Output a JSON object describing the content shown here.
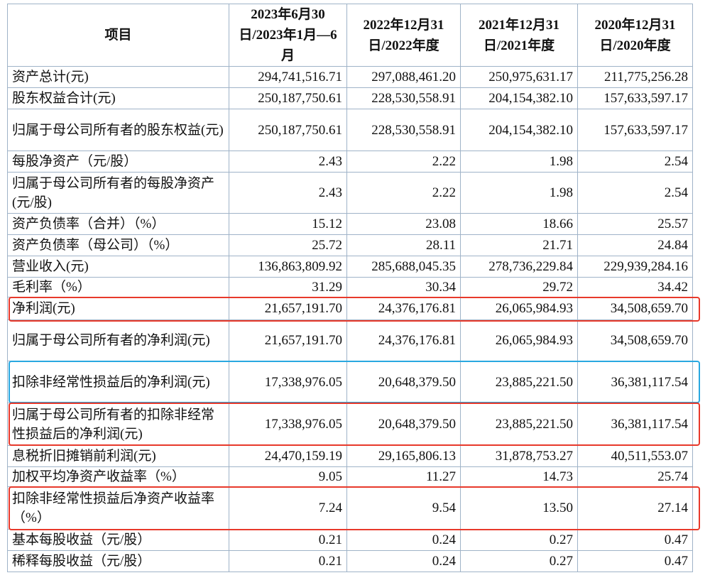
{
  "table": {
    "header": [
      "项目",
      "2023年6月30日/2023年1月—6月",
      "2022年12月31日/2022年度",
      "2021年12月31日/2021年度",
      "2020年12月31日/2020年度"
    ],
    "rows": [
      [
        "资产总计(元)",
        "294,741,516.71",
        "297,088,461.20",
        "250,975,631.17",
        "211,775,256.28"
      ],
      [
        "股东权益合计(元)",
        "250,187,750.61",
        "228,530,558.91",
        "204,154,382.10",
        "157,633,597.17"
      ],
      [
        "归属于母公司所有者的股东权益(元)",
        "250,187,750.61",
        "228,530,558.91",
        "204,154,382.10",
        "157,633,597.17"
      ],
      [
        "每股净资产（元/股）",
        "2.43",
        "2.22",
        "1.98",
        "2.54"
      ],
      [
        "归属于母公司所有者的每股净资产(元/股)",
        "2.43",
        "2.22",
        "1.98",
        "2.54"
      ],
      [
        "资产负债率（合并）（%）",
        "15.12",
        "23.08",
        "18.66",
        "25.57"
      ],
      [
        "资产负债率（母公司）（%）",
        "25.72",
        "28.11",
        "21.71",
        "24.84"
      ],
      [
        "营业收入(元)",
        "136,863,809.92",
        "285,688,045.35",
        "278,736,229.84",
        "229,939,284.16"
      ],
      [
        "毛利率（%）",
        "31.29",
        "30.34",
        "29.72",
        "34.42"
      ],
      [
        "净利润(元)",
        "21,657,191.70",
        "24,376,176.81",
        "26,065,984.93",
        "34,508,659.70"
      ],
      [
        "归属于母公司所有者的净利润(元)",
        "21,657,191.70",
        "24,376,176.81",
        "26,065,984.93",
        "34,508,659.70"
      ],
      [
        "扣除非经常性损益后的净利润(元)",
        "17,338,976.05",
        "20,648,379.50",
        "23,885,221.50",
        "36,381,117.54"
      ],
      [
        "归属于母公司所有者的扣除非经常性损益后的净利润(元)",
        "17,338,976.05",
        "20,648,379.50",
        "23,885,221.50",
        "36,381,117.54"
      ],
      [
        "息税折旧摊销前利润(元)",
        "24,470,159.19",
        "29,165,806.13",
        "31,878,753.27",
        "40,511,553.07"
      ],
      [
        "加权平均净资产收益率（%）",
        "9.05",
        "11.27",
        "14.73",
        "25.74"
      ],
      [
        "扣除非经常性损益后净资产收益率（%）",
        "7.24",
        "9.54",
        "13.50",
        "27.14"
      ],
      [
        "基本每股收益（元/股）",
        "0.21",
        "0.24",
        "0.27",
        "0.47"
      ],
      [
        "稀释每股收益（元/股）",
        "0.21",
        "0.24",
        "0.27",
        "0.47"
      ]
    ]
  }
}
